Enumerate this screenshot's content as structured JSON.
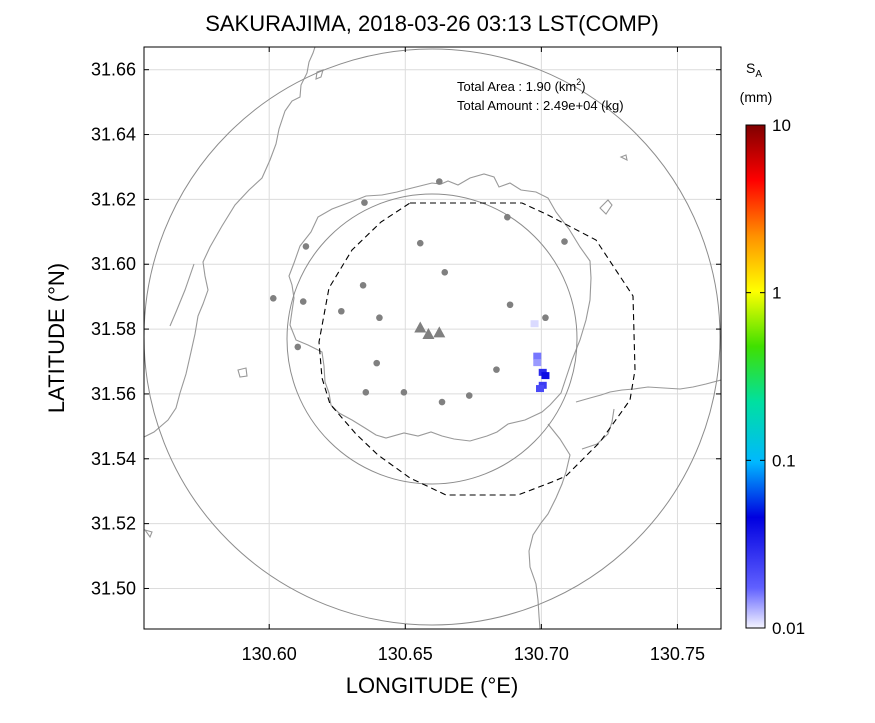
{
  "title": "SAKURAJIMA, 2018-03-26 03:13 LST(COMP)",
  "xlabel": "LONGITUDE (°E)",
  "ylabel": "LATITUDE (°N)",
  "xticks": [
    "130.60",
    "130.65",
    "130.70",
    "130.75"
  ],
  "yticks": [
    "31.66",
    "31.64",
    "31.62",
    "31.60",
    "31.58",
    "31.56",
    "31.54",
    "31.52",
    "31.50"
  ],
  "info": {
    "area_label": "Total Area   : 1.90 (km",
    "area_sup": "2",
    "area_close": ")",
    "amount_label": "Total Amount : 2.49e+04 (kg)"
  },
  "colorbar": {
    "label_main": "S",
    "label_sub": "A",
    "unit": "(mm)",
    "ticks": [
      "10",
      "1",
      "0.1",
      "0.01"
    ]
  },
  "chart_data": {
    "type": "scatter",
    "xlim": [
      130.554,
      130.766
    ],
    "ylim": [
      31.4875,
      31.667
    ],
    "grid": true,
    "vents": [
      [
        130.6555,
        31.5805
      ],
      [
        130.6585,
        31.5785
      ],
      [
        130.6625,
        31.579
      ]
    ],
    "stations": [
      [
        130.6625,
        31.6255
      ],
      [
        130.635,
        31.619
      ],
      [
        130.6875,
        31.6145
      ],
      [
        130.6555,
        31.6065
      ],
      [
        130.6135,
        31.6055
      ],
      [
        130.7085,
        31.607
      ],
      [
        130.6645,
        31.5975
      ],
      [
        130.6015,
        31.5895
      ],
      [
        130.6125,
        31.5885
      ],
      [
        130.6345,
        31.5935
      ],
      [
        130.6885,
        31.5875
      ],
      [
        130.6265,
        31.5855
      ],
      [
        130.6405,
        31.5835
      ],
      [
        130.7015,
        31.5835
      ],
      [
        130.6105,
        31.5745
      ],
      [
        130.6395,
        31.5695
      ],
      [
        130.6835,
        31.5675
      ],
      [
        130.6355,
        31.5605
      ],
      [
        130.6495,
        31.5605
      ],
      [
        130.6735,
        31.5595
      ],
      [
        130.6635,
        31.5575
      ]
    ],
    "deposit_cells": [
      [
        130.6975,
        31.5815,
        0.011
      ],
      [
        130.6985,
        31.5715,
        0.016
      ],
      [
        130.6985,
        31.5695,
        0.014
      ],
      [
        130.7005,
        31.5665,
        0.03
      ],
      [
        130.7015,
        31.5655,
        0.04
      ],
      [
        130.7005,
        31.5625,
        0.025
      ],
      [
        130.6995,
        31.5615,
        0.022
      ]
    ]
  }
}
